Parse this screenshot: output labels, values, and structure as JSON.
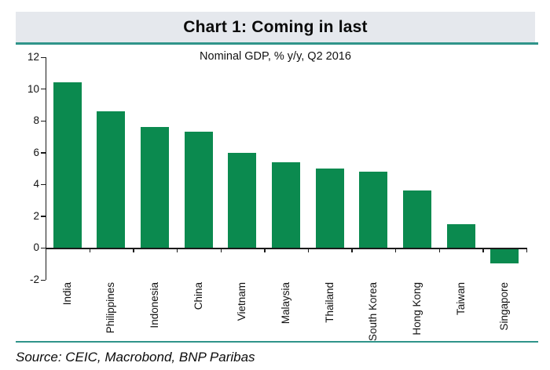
{
  "header": {
    "title": "Chart 1: Coming in last"
  },
  "chart_data": {
    "type": "bar",
    "title": "Chart 1: Coming in last",
    "subtitle": "Nominal GDP, % y/y, Q2 2016",
    "categories": [
      "India",
      "Philippines",
      "Indonesia",
      "China",
      "Vietnam",
      "Malaysia",
      "Thailand",
      "South Korea",
      "Hong Kong",
      "Taiwan",
      "Singapore"
    ],
    "values": [
      10.4,
      8.6,
      7.6,
      7.3,
      6.0,
      5.4,
      5.0,
      4.8,
      3.6,
      1.5,
      -0.9
    ],
    "ylim": [
      -2,
      12
    ],
    "yticks": [
      12,
      10,
      8,
      6,
      4,
      2,
      0,
      -2
    ],
    "grid": false,
    "legend": false,
    "bar_color": "#0b8a4f",
    "xlabel": "",
    "ylabel": ""
  },
  "footer": {
    "source": "Source: CEIC, Macrobond, BNP Paribas"
  },
  "colors": {
    "bar": "#0b8a4f",
    "rule": "#2f948a",
    "header_bg": "#e5e8ed",
    "axis": "#1a1a1a"
  }
}
